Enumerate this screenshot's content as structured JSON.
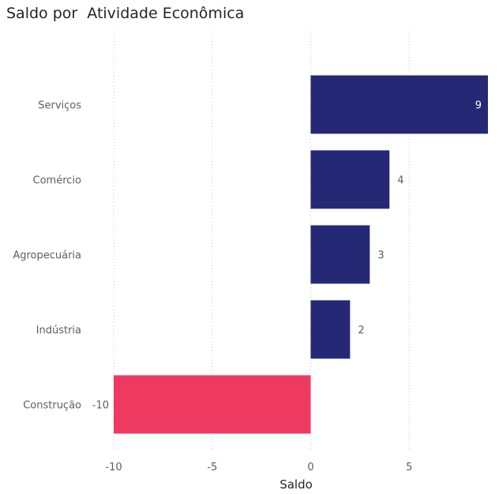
{
  "chart_data": {
    "type": "bar",
    "orientation": "horizontal",
    "title": "Saldo por  Atividade Econômica",
    "categories": [
      "Serviços",
      "Comércio",
      "Agropecuária",
      "Indústria",
      "Construção"
    ],
    "values": [
      9,
      4,
      3,
      2,
      -10
    ],
    "xlabel": "Saldo",
    "ylabel": "",
    "xlim": [
      -10,
      9
    ],
    "x_ticks": [
      -10,
      -5,
      0,
      5
    ],
    "grid": true,
    "colors": {
      "positive": "#252874",
      "negative": "#ee3a61",
      "label_inside": "#ffffff",
      "label_outside": "#605e5c"
    }
  }
}
